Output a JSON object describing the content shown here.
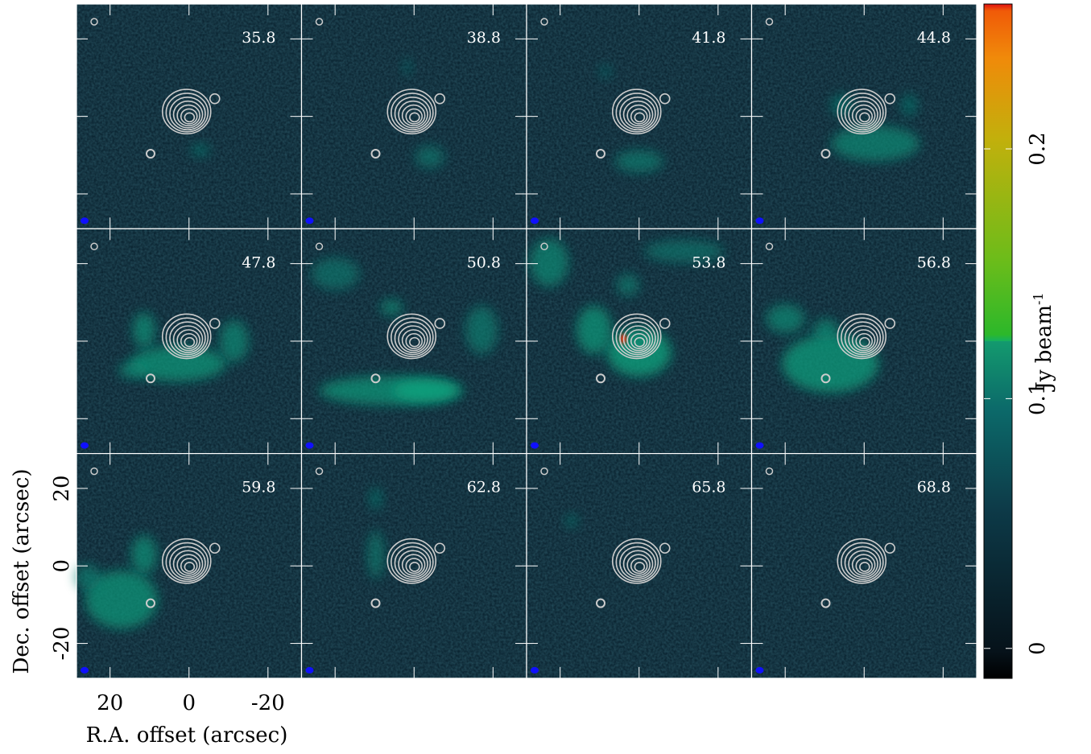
{
  "chart_data": {
    "type": "channel-map",
    "channels": [
      "35.8",
      "38.8",
      "41.8",
      "44.8",
      "47.8",
      "50.8",
      "53.8",
      "56.8",
      "59.8",
      "62.8",
      "65.8",
      "68.8"
    ],
    "xlabel": "R.A. offset (arcsec)",
    "ylabel": "Dec. offset (arcsec)",
    "xlim": [
      28.5,
      -28.5
    ],
    "ylim": [
      -29,
      29
    ],
    "xticks": [
      20,
      0,
      -20
    ],
    "yticks": [
      -20,
      0,
      20
    ],
    "colorbar": {
      "label": "Jy beam",
      "label_sup": "-1",
      "clim": [
        -0.012,
        0.258
      ],
      "ticks": [
        0,
        0.1,
        0.2
      ]
    }
  }
}
